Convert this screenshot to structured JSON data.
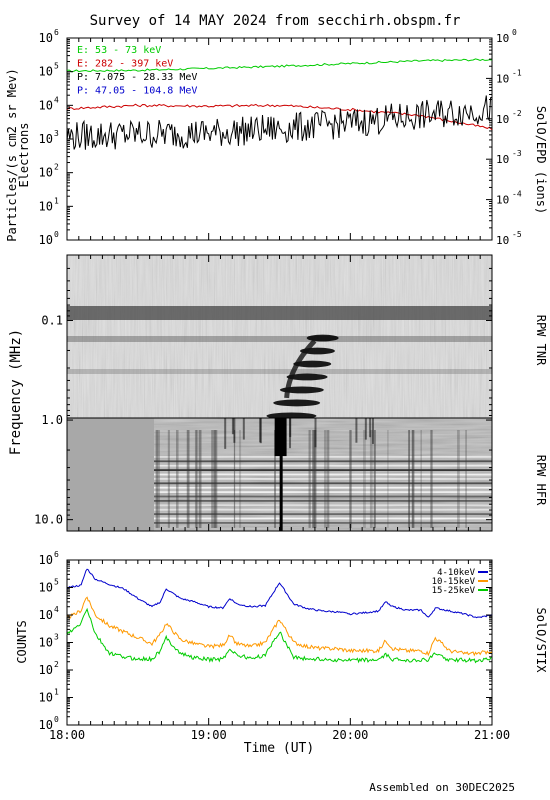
{
  "title": "Survey of 14 MAY 2024 from secchirh.obspm.fr",
  "footer": "Assembled on 30DEC2025",
  "chart_data": [
    {
      "type": "line",
      "name": "panel-epd",
      "ylabel": "Particles/(s cm2 sr Mev)",
      "ylabel2": "Electrons",
      "right_label": "SolO/EPD (ions)",
      "yscale": "log",
      "ylim": [
        1,
        1000000
      ],
      "y_ticks": [
        {
          "e": "0"
        },
        {
          "e": "1"
        },
        {
          "e": "2"
        },
        {
          "e": "3"
        },
        {
          "e": "4"
        },
        {
          "e": "5"
        },
        {
          "e": "6"
        }
      ],
      "yrlim": [
        1e-05,
        1
      ],
      "yr_ticks": [
        {
          "e": "-5"
        },
        {
          "e": "-4"
        },
        {
          "e": "-3"
        },
        {
          "e": "-2"
        },
        {
          "e": "-1"
        },
        {
          "e": "0"
        }
      ],
      "xlim": [
        18.0,
        21.0
      ],
      "legend_loc": "top-left",
      "series": [
        {
          "name": "E: 53 - 73 keV",
          "color": "#00cc00",
          "x": [
            18.0,
            18.5,
            19.0,
            19.5,
            20.0,
            20.5,
            21.0
          ],
          "y": [
            105000,
            110000,
            125000,
            145000,
            175000,
            210000,
            230000
          ]
        },
        {
          "name": "E: 282 - 397 keV",
          "color": "#cc0000",
          "x": [
            18.0,
            18.5,
            19.0,
            19.5,
            20.0,
            20.5,
            21.0
          ],
          "y": [
            8000,
            10000,
            9500,
            10000,
            7500,
            5000,
            2000
          ]
        },
        {
          "name": "P: 7.075 - 28.33 MeV",
          "color": "#000000",
          "x": [
            18.0,
            18.5,
            19.0,
            19.5,
            20.0,
            20.5,
            21.0
          ],
          "y": [
            1200,
            1400,
            1500,
            2000,
            3000,
            5000,
            8000
          ]
        },
        {
          "name": "P: 47.05 - 104.8 MeV",
          "color": "#0000cc",
          "x": [],
          "y": []
        }
      ]
    },
    {
      "type": "heatmap",
      "name": "panel-rpw",
      "ylabel": "Frequency (MHz)",
      "right_label_top": "RPW TNR",
      "right_label_bottom": "RPW HFR",
      "yscale": "log",
      "y_reversed": true,
      "ylim": [
        0.02,
        13
      ],
      "y_ticks": [
        {
          "v": 0.1,
          "label": "0.1"
        },
        {
          "v": 1,
          "label": "1.0"
        },
        {
          "v": 10,
          "label": "10.0"
        }
      ],
      "xlim": [
        18.0,
        21.0
      ],
      "features": [
        {
          "label": "type III burst",
          "t_start": 19.48,
          "t_end": 19.55,
          "f_top": 0.15,
          "f_bottom": 13
        }
      ]
    },
    {
      "type": "line",
      "name": "panel-stix",
      "ylabel": "COUNTS",
      "right_label": "SolO/STIX",
      "yscale": "log",
      "ylim": [
        1,
        1000000
      ],
      "y_ticks": [
        {
          "e": "0"
        },
        {
          "e": "1"
        },
        {
          "e": "2"
        },
        {
          "e": "3"
        },
        {
          "e": "4"
        },
        {
          "e": "5"
        },
        {
          "e": "6"
        }
      ],
      "xlim": [
        18.0,
        21.0
      ],
      "xlabel": "Time (UT)",
      "x_ticks": [
        {
          "v": 18,
          "label": "18:00"
        },
        {
          "v": 19,
          "label": "19:00"
        },
        {
          "v": 20,
          "label": "20:00"
        },
        {
          "v": 21,
          "label": "21:00"
        }
      ],
      "legend_loc": "top-right",
      "series": [
        {
          "name": "4-10keV",
          "color": "#0000cc",
          "x": [
            18.0,
            18.1,
            18.14,
            18.2,
            18.3,
            18.4,
            18.5,
            18.6,
            18.66,
            18.7,
            18.8,
            18.9,
            19.0,
            19.1,
            19.15,
            19.2,
            19.3,
            19.4,
            19.5,
            19.6,
            19.7,
            19.8,
            19.9,
            20.0,
            20.1,
            20.2,
            20.25,
            20.3,
            20.4,
            20.5,
            20.55,
            20.6,
            20.7,
            20.8,
            20.9,
            21.0
          ],
          "y": [
            100000,
            120000,
            500000,
            200000,
            130000,
            90000,
            40000,
            20000,
            30000,
            90000,
            40000,
            30000,
            20000,
            18000,
            40000,
            25000,
            20000,
            22000,
            150000,
            25000,
            17000,
            14000,
            13000,
            11000,
            12000,
            14000,
            30000,
            20000,
            15000,
            15000,
            8000,
            18000,
            14000,
            11000,
            8000,
            10000
          ]
        },
        {
          "name": "10-15keV",
          "color": "#ff9900",
          "x": [
            18.0,
            18.05,
            18.1,
            18.14,
            18.2,
            18.3,
            18.4,
            18.5,
            18.6,
            18.66,
            18.7,
            18.8,
            18.9,
            19.0,
            19.1,
            19.15,
            19.2,
            19.3,
            19.4,
            19.5,
            19.6,
            19.7,
            19.8,
            19.9,
            20.0,
            20.1,
            20.2,
            20.25,
            20.3,
            20.4,
            20.5,
            20.55,
            20.6,
            20.7,
            20.8,
            20.9,
            21.0
          ],
          "y": [
            8000,
            10000,
            15000,
            50000,
            10000,
            4000,
            2500,
            1500,
            900,
            2000,
            5000,
            1300,
            900,
            700,
            800,
            1800,
            900,
            700,
            1000,
            7000,
            1000,
            700,
            600,
            600,
            500,
            500,
            500,
            1200,
            600,
            500,
            500,
            400,
            1500,
            500,
            400,
            400,
            500
          ]
        },
        {
          "name": "15-25keV",
          "color": "#00cc00",
          "x": [
            18.0,
            18.05,
            18.1,
            18.14,
            18.2,
            18.3,
            18.4,
            18.5,
            18.6,
            18.66,
            18.7,
            18.8,
            18.9,
            19.0,
            19.1,
            19.15,
            19.2,
            19.3,
            19.4,
            19.5,
            19.6,
            19.7,
            19.8,
            19.9,
            20.0,
            20.1,
            20.2,
            20.25,
            20.3,
            20.4,
            20.5,
            20.55,
            20.6,
            20.7,
            20.8,
            20.9,
            21.0
          ],
          "y": [
            2000,
            3000,
            5000,
            18000,
            2000,
            400,
            300,
            250,
            250,
            500,
            1500,
            400,
            280,
            240,
            250,
            600,
            350,
            260,
            350,
            2500,
            300,
            250,
            250,
            230,
            220,
            230,
            230,
            350,
            240,
            230,
            230,
            230,
            400,
            230,
            230,
            220,
            260
          ]
        }
      ]
    }
  ]
}
